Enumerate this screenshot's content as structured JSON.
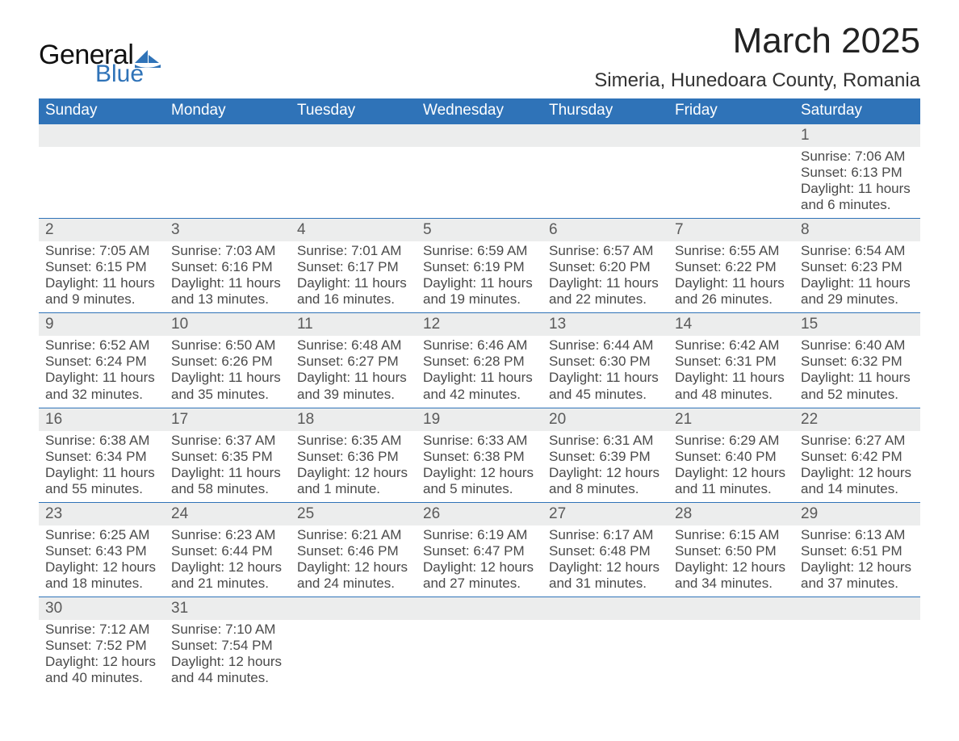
{
  "brand": {
    "word1": "General",
    "word2": "Blue",
    "accent": "#2f73b8"
  },
  "title": "March 2025",
  "location": "Simeria, Hunedoara County, Romania",
  "colors": {
    "header_bg": "#2f73b8",
    "header_text": "#ffffff",
    "strip_bg": "#eceded",
    "text": "#4a4a4a",
    "day_text": "#5a5a5a",
    "rule": "#2f73b8"
  },
  "weekdays": [
    "Sunday",
    "Monday",
    "Tuesday",
    "Wednesday",
    "Thursday",
    "Friday",
    "Saturday"
  ],
  "weeks": [
    [
      null,
      null,
      null,
      null,
      null,
      null,
      {
        "n": "1",
        "sr": "7:06 AM",
        "ss": "6:13 PM",
        "dl": "11 hours and 6 minutes."
      }
    ],
    [
      {
        "n": "2",
        "sr": "7:05 AM",
        "ss": "6:15 PM",
        "dl": "11 hours and 9 minutes."
      },
      {
        "n": "3",
        "sr": "7:03 AM",
        "ss": "6:16 PM",
        "dl": "11 hours and 13 minutes."
      },
      {
        "n": "4",
        "sr": "7:01 AM",
        "ss": "6:17 PM",
        "dl": "11 hours and 16 minutes."
      },
      {
        "n": "5",
        "sr": "6:59 AM",
        "ss": "6:19 PM",
        "dl": "11 hours and 19 minutes."
      },
      {
        "n": "6",
        "sr": "6:57 AM",
        "ss": "6:20 PM",
        "dl": "11 hours and 22 minutes."
      },
      {
        "n": "7",
        "sr": "6:55 AM",
        "ss": "6:22 PM",
        "dl": "11 hours and 26 minutes."
      },
      {
        "n": "8",
        "sr": "6:54 AM",
        "ss": "6:23 PM",
        "dl": "11 hours and 29 minutes."
      }
    ],
    [
      {
        "n": "9",
        "sr": "6:52 AM",
        "ss": "6:24 PM",
        "dl": "11 hours and 32 minutes."
      },
      {
        "n": "10",
        "sr": "6:50 AM",
        "ss": "6:26 PM",
        "dl": "11 hours and 35 minutes."
      },
      {
        "n": "11",
        "sr": "6:48 AM",
        "ss": "6:27 PM",
        "dl": "11 hours and 39 minutes."
      },
      {
        "n": "12",
        "sr": "6:46 AM",
        "ss": "6:28 PM",
        "dl": "11 hours and 42 minutes."
      },
      {
        "n": "13",
        "sr": "6:44 AM",
        "ss": "6:30 PM",
        "dl": "11 hours and 45 minutes."
      },
      {
        "n": "14",
        "sr": "6:42 AM",
        "ss": "6:31 PM",
        "dl": "11 hours and 48 minutes."
      },
      {
        "n": "15",
        "sr": "6:40 AM",
        "ss": "6:32 PM",
        "dl": "11 hours and 52 minutes."
      }
    ],
    [
      {
        "n": "16",
        "sr": "6:38 AM",
        "ss": "6:34 PM",
        "dl": "11 hours and 55 minutes."
      },
      {
        "n": "17",
        "sr": "6:37 AM",
        "ss": "6:35 PM",
        "dl": "11 hours and 58 minutes."
      },
      {
        "n": "18",
        "sr": "6:35 AM",
        "ss": "6:36 PM",
        "dl": "12 hours and 1 minute."
      },
      {
        "n": "19",
        "sr": "6:33 AM",
        "ss": "6:38 PM",
        "dl": "12 hours and 5 minutes."
      },
      {
        "n": "20",
        "sr": "6:31 AM",
        "ss": "6:39 PM",
        "dl": "12 hours and 8 minutes."
      },
      {
        "n": "21",
        "sr": "6:29 AM",
        "ss": "6:40 PM",
        "dl": "12 hours and 11 minutes."
      },
      {
        "n": "22",
        "sr": "6:27 AM",
        "ss": "6:42 PM",
        "dl": "12 hours and 14 minutes."
      }
    ],
    [
      {
        "n": "23",
        "sr": "6:25 AM",
        "ss": "6:43 PM",
        "dl": "12 hours and 18 minutes."
      },
      {
        "n": "24",
        "sr": "6:23 AM",
        "ss": "6:44 PM",
        "dl": "12 hours and 21 minutes."
      },
      {
        "n": "25",
        "sr": "6:21 AM",
        "ss": "6:46 PM",
        "dl": "12 hours and 24 minutes."
      },
      {
        "n": "26",
        "sr": "6:19 AM",
        "ss": "6:47 PM",
        "dl": "12 hours and 27 minutes."
      },
      {
        "n": "27",
        "sr": "6:17 AM",
        "ss": "6:48 PM",
        "dl": "12 hours and 31 minutes."
      },
      {
        "n": "28",
        "sr": "6:15 AM",
        "ss": "6:50 PM",
        "dl": "12 hours and 34 minutes."
      },
      {
        "n": "29",
        "sr": "6:13 AM",
        "ss": "6:51 PM",
        "dl": "12 hours and 37 minutes."
      }
    ],
    [
      {
        "n": "30",
        "sr": "7:12 AM",
        "ss": "7:52 PM",
        "dl": "12 hours and 40 minutes."
      },
      {
        "n": "31",
        "sr": "7:10 AM",
        "ss": "7:54 PM",
        "dl": "12 hours and 44 minutes."
      },
      null,
      null,
      null,
      null,
      null
    ]
  ],
  "labels": {
    "sunrise": "Sunrise: ",
    "sunset": "Sunset: ",
    "daylight": "Daylight: "
  }
}
